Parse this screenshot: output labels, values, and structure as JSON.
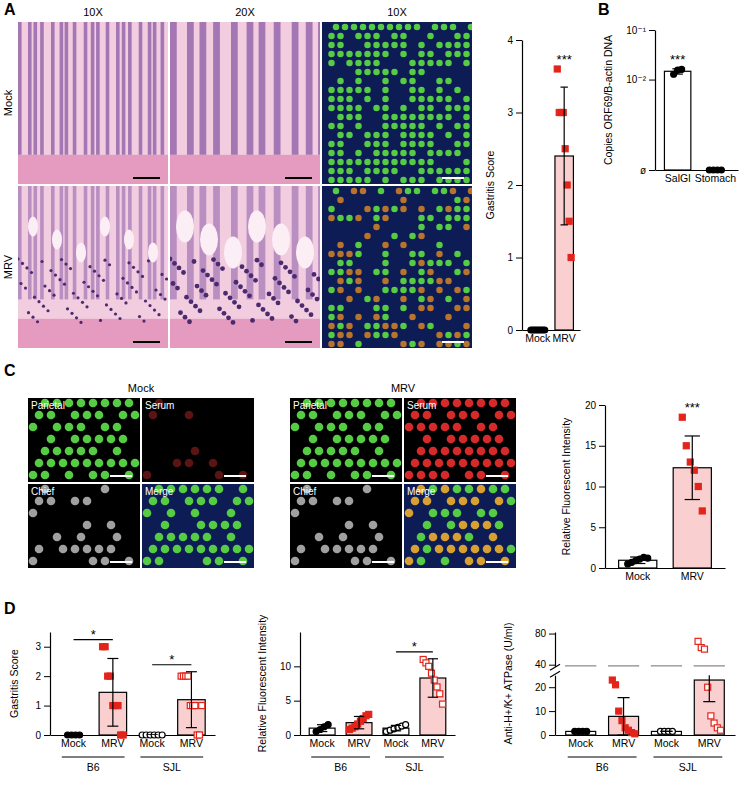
{
  "figure": {
    "panels": [
      {
        "label": "A",
        "columns": [
          "10X",
          "20X",
          "10X"
        ],
        "rows": [
          "Mock",
          "MRV"
        ]
      },
      {
        "label": "B"
      },
      {
        "label": "C",
        "groups": [
          {
            "title": "Mock",
            "images": [
              "Parietal",
              "Serum",
              "Chief",
              "Merge"
            ]
          },
          {
            "title": "MRV",
            "images": [
              "Parietal",
              "Serum",
              "Chief",
              "Merge"
            ]
          }
        ]
      },
      {
        "label": "D"
      }
    ]
  },
  "chart_data": [
    {
      "type": "bar",
      "ylabel": "Gastritis Score",
      "categories": [
        "Mock",
        "MRV"
      ],
      "values": [
        0,
        2.4
      ],
      "errors": [
        0,
        0.95
      ],
      "colors": [
        "#ffffff",
        "#f9cfcf"
      ],
      "ylim": [
        0,
        4
      ],
      "yticks": [
        0,
        1,
        2,
        3,
        4
      ],
      "points": [
        {
          "color": "#000000",
          "marker": "circle",
          "values": [
            0,
            0,
            0,
            0,
            0,
            0,
            0,
            0
          ]
        },
        {
          "color": "#e3241b",
          "marker": "square",
          "values": [
            3.6,
            3,
            3,
            3,
            2.5,
            2,
            1.5,
            1
          ]
        }
      ],
      "annotations": [
        {
          "text": "***",
          "category": 1
        }
      ]
    },
    {
      "type": "bar",
      "log": "y",
      "ylabel": "Copies ORF69/B-actin DNA",
      "categories": [
        "SalGl",
        "Stomach"
      ],
      "values": [
        0.0147,
        0.00015
      ],
      "errors": [
        0.0018,
        0
      ],
      "colors": [
        "#ffffff",
        "#ffffff"
      ],
      "ylim": [
        0.00015,
        0.1
      ],
      "yticks": [
        {
          "value": 0.00015,
          "label": "ø"
        },
        {
          "value": 0.01,
          "label": "10⁻²"
        },
        {
          "value": 0.1,
          "label": "10⁻¹"
        }
      ],
      "points": [
        {
          "color": "#000000",
          "marker": "circle",
          "values": [
            0.0128,
            0.0155,
            0.016
          ]
        },
        {
          "color": "#000000",
          "marker": "circle",
          "values": [
            0.00015,
            0.00015,
            0.00015,
            0.00015
          ]
        }
      ],
      "annotations": [
        {
          "text": "***",
          "category": 0
        }
      ]
    },
    {
      "type": "bar",
      "ylabel": "Relative Fluorescent Intensity",
      "categories": [
        "Mock",
        "MRV"
      ],
      "values": [
        0.95,
        12.3
      ],
      "errors": [
        0.4,
        3.9
      ],
      "colors": [
        "#ffffff",
        "#f9cfcf"
      ],
      "ylim": [
        0,
        20
      ],
      "yticks": [
        0,
        5,
        10,
        15,
        20
      ],
      "points": [
        {
          "color": "#000000",
          "marker": "circle",
          "values": [
            0.5,
            0.7,
            0.9,
            1.1,
            1.3,
            1.2
          ]
        },
        {
          "color": "#e3241b",
          "marker": "square",
          "values": [
            18.5,
            15,
            13,
            12,
            10,
            7
          ]
        }
      ],
      "annotations": [
        {
          "text": "***",
          "category": 1
        }
      ]
    },
    {
      "type": "bar",
      "ylabel": "Gastritis Score",
      "categories": [
        "Mock",
        "MRV",
        "Mock",
        "MRV"
      ],
      "groups": [
        {
          "label": "B6",
          "categories": [
            0,
            1
          ]
        },
        {
          "label": "SJL",
          "categories": [
            2,
            3
          ]
        }
      ],
      "values": [
        0,
        1.45,
        0,
        1.2
      ],
      "errors": [
        0,
        1.15,
        0,
        0.95
      ],
      "colors": [
        "#ffffff",
        "#f9cfcf",
        "#ffffff",
        "#f9cfcf"
      ],
      "ylim": [
        0,
        3.5
      ],
      "yticks": [
        0,
        1,
        2,
        3
      ],
      "points": [
        {
          "color": "#000000",
          "marker": "circle",
          "values": [
            0,
            0,
            0,
            0
          ]
        },
        {
          "color": "#e3241b",
          "marker": "square",
          "values": [
            3,
            3,
            2,
            2,
            1,
            1,
            1,
            0,
            0
          ]
        },
        {
          "color": "#000000",
          "marker": "open-circle",
          "values": [
            0,
            0,
            0,
            0,
            0,
            0
          ]
        },
        {
          "color": "#e3241b",
          "marker": "open-square",
          "values": [
            2,
            2,
            2,
            2,
            1,
            1,
            1,
            0,
            0,
            1
          ]
        }
      ],
      "annotations": [
        {
          "text": "*",
          "categories": [
            0,
            1
          ]
        },
        {
          "text": "*",
          "categories": [
            2,
            3
          ]
        }
      ]
    },
    {
      "type": "bar",
      "ylabel": "Relative Fluorescent Intensity",
      "categories": [
        "Mock",
        "MRV",
        "Mock",
        "MRV"
      ],
      "groups": [
        {
          "label": "B6",
          "categories": [
            0,
            1
          ]
        },
        {
          "label": "SJL",
          "categories": [
            2,
            3
          ]
        }
      ],
      "values": [
        1.0,
        1.8,
        1.0,
        8.3
      ],
      "errors": [
        0.5,
        0.9,
        0.4,
        2.8
      ],
      "colors": [
        "#ffffff",
        "#f9cfcf",
        "#ffffff",
        "#f9cfcf"
      ],
      "ylim": [
        0,
        15
      ],
      "yticks": [
        0,
        5,
        10
      ],
      "points": [
        {
          "color": "#000000",
          "marker": "circle",
          "values": [
            0.5,
            0.8,
            1.2,
            1.5
          ]
        },
        {
          "color": "#e3241b",
          "marker": "square",
          "values": [
            0.8,
            1,
            1.2,
            1.6,
            2,
            2.4,
            2.8,
            3
          ]
        },
        {
          "color": "#000000",
          "marker": "open-circle",
          "values": [
            0.5,
            0.7,
            0.9,
            1.1,
            1.3,
            1.5
          ]
        },
        {
          "color": "#e3241b",
          "marker": "open-square",
          "values": [
            11,
            10.5,
            10,
            9,
            8,
            7,
            6,
            4.5
          ]
        }
      ],
      "annotations": [
        {
          "text": "*",
          "categories": [
            2,
            3
          ]
        }
      ]
    },
    {
      "type": "bar",
      "ylabel": "Anti-H+/K+ ATPase (U/ml)",
      "categories": [
        "Mock",
        "MRV",
        "Mock",
        "MRV"
      ],
      "groups": [
        {
          "label": "B6",
          "categories": [
            0,
            1
          ]
        },
        {
          "label": "SJL",
          "categories": [
            2,
            3
          ]
        }
      ],
      "values": [
        1.5,
        7.8,
        1.5,
        23
      ],
      "errors": [
        0,
        7.8,
        0,
        9
      ],
      "colors": [
        "#ffffff",
        "#f9cfcf",
        "#ffffff",
        "#f9cfcf"
      ],
      "ylim": [
        0,
        25
      ],
      "yticks": [
        0,
        10,
        20
      ],
      "ylim_upper": [
        38,
        82
      ],
      "yticks_upper": [
        40,
        80
      ],
      "points": [
        {
          "color": "#000000",
          "marker": "circle",
          "values": [
            1.5,
            1.5,
            1.5,
            1.5
          ]
        },
        {
          "color": "#e3241b",
          "marker": "square",
          "values": [
            23,
            21,
            10,
            6,
            3,
            2,
            1,
            0.5
          ]
        },
        {
          "color": "#000000",
          "marker": "open-circle",
          "values": [
            1.5,
            1.5,
            1.5,
            1.5
          ]
        },
        {
          "color": "#e3241b",
          "marker": "open-square",
          "values": [
            70,
            62,
            60,
            20,
            8,
            5,
            3,
            2
          ]
        }
      ]
    }
  ]
}
